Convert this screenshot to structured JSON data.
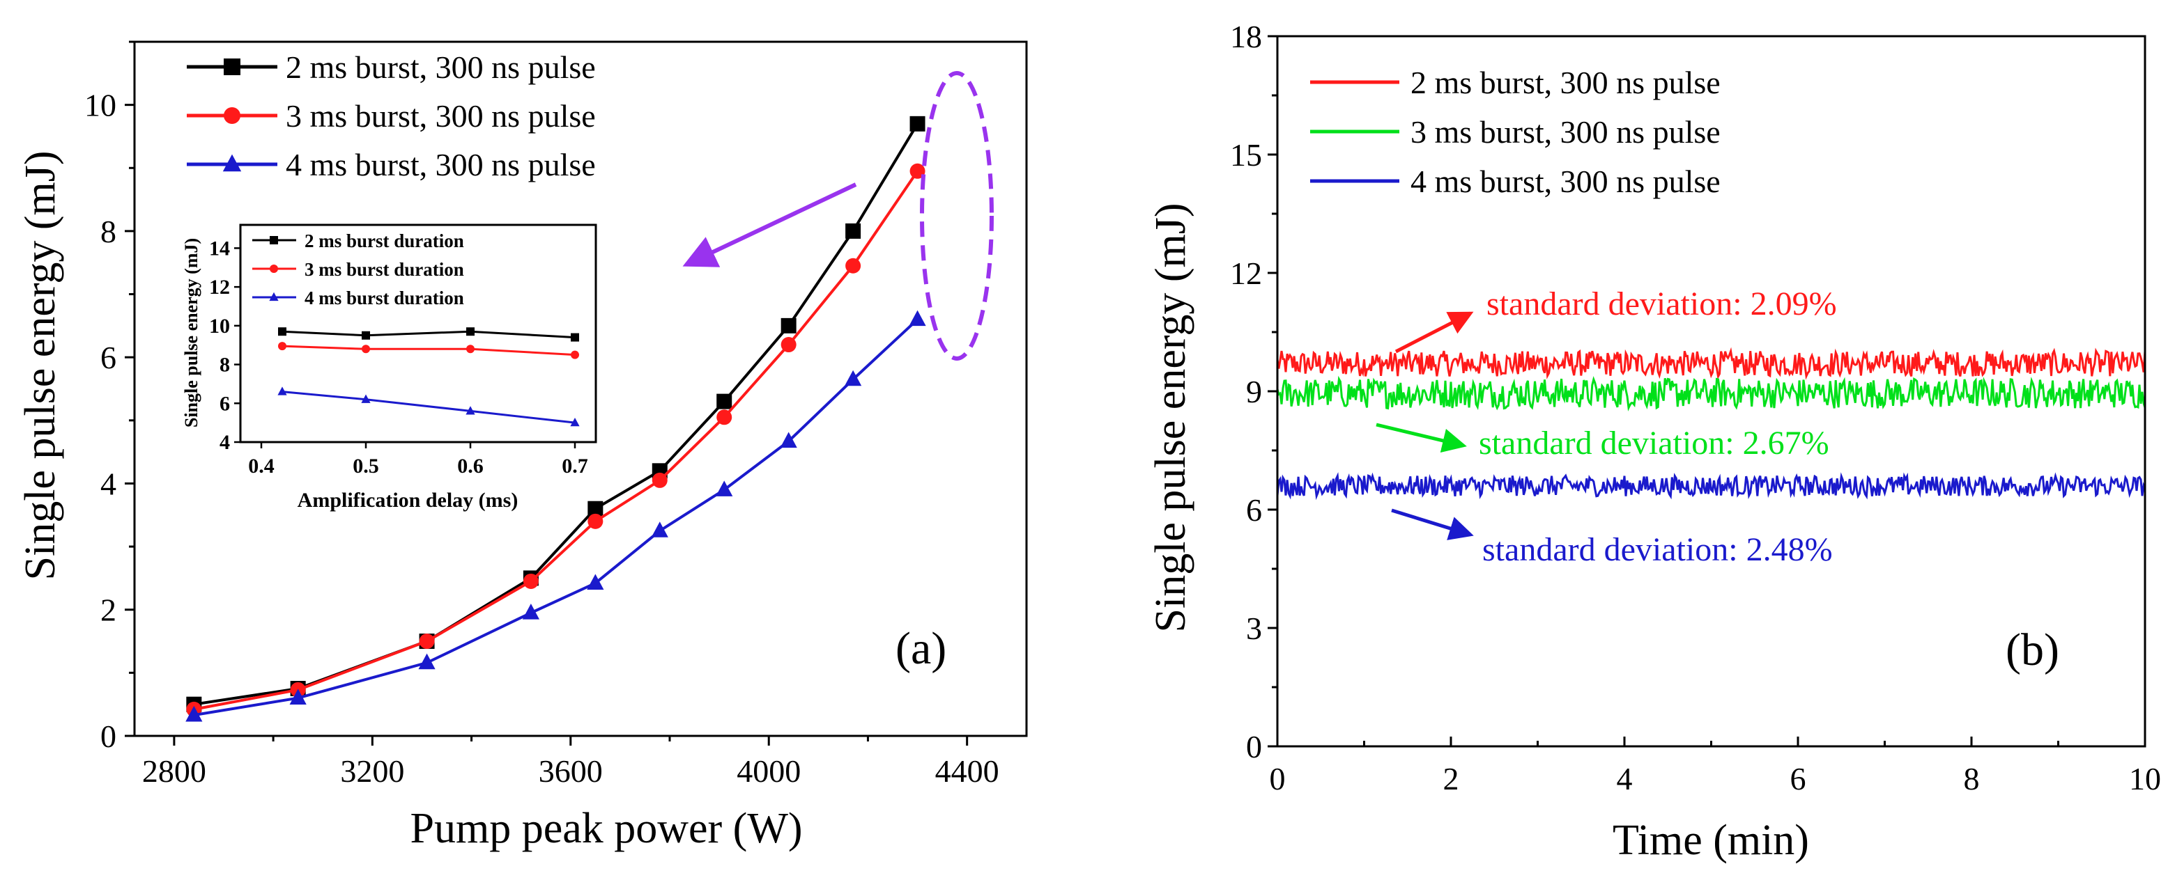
{
  "colors": {
    "black": "#000000",
    "red": "#ff1a1a",
    "green": "#00e01a",
    "blue": "#1a1acc",
    "purple": "#9933ee"
  },
  "chart_data": [
    {
      "id": "a",
      "type": "line",
      "panel_label": "(a)",
      "xlabel": "Pump peak power (W)",
      "ylabel": "Single pulse energy (mJ)",
      "xlim": [
        2720,
        4520
      ],
      "ylim": [
        0,
        11
      ],
      "xticks": [
        2800,
        3200,
        3600,
        4000,
        4400
      ],
      "yticks": [
        0,
        2,
        4,
        6,
        8,
        10
      ],
      "x": [
        2840,
        3050,
        3310,
        3520,
        3650,
        3780,
        3910,
        4040,
        4170,
        4300
      ],
      "series": [
        {
          "name": "2 ms burst, 300 ns pulse",
          "marker": "square",
          "color": "#000000",
          "values": [
            0.5,
            0.75,
            1.5,
            2.5,
            3.6,
            4.2,
            5.3,
            6.5,
            8.0,
            9.7
          ]
        },
        {
          "name": "3 ms burst, 300 ns pulse",
          "marker": "circle",
          "color": "#ff1a1a",
          "values": [
            0.42,
            0.73,
            1.5,
            2.45,
            3.4,
            4.05,
            5.05,
            6.2,
            7.45,
            8.95
          ]
        },
        {
          "name": "4 ms burst, 300 ns pulse",
          "marker": "triangle",
          "color": "#1a1acc",
          "values": [
            0.33,
            0.6,
            1.16,
            1.95,
            2.42,
            3.25,
            3.9,
            4.67,
            5.65,
            6.6
          ]
        }
      ],
      "annotations": [
        "dashed ellipse around highest-power points",
        "arrow pointing to inset"
      ],
      "inset": {
        "xlabel": "Amplification delay (ms)",
        "ylabel": "Single pulse energy (mJ)",
        "xlim": [
          0.38,
          0.72
        ],
        "ylim": [
          4,
          15.2
        ],
        "xticks": [
          0.4,
          0.5,
          0.6,
          0.7
        ],
        "yticks": [
          4,
          6,
          8,
          10,
          12,
          14
        ],
        "x": [
          0.42,
          0.5,
          0.6,
          0.7
        ],
        "series": [
          {
            "name": "2 ms burst duration",
            "marker": "square",
            "color": "#000000",
            "values": [
              9.7,
              9.5,
              9.7,
              9.4
            ]
          },
          {
            "name": "3 ms burst duration",
            "marker": "circle",
            "color": "#ff1a1a",
            "values": [
              8.95,
              8.8,
              8.8,
              8.5
            ]
          },
          {
            "name": "4 ms burst duration",
            "marker": "triangle",
            "color": "#1a1acc",
            "values": [
              6.6,
              6.2,
              5.6,
              5.0
            ]
          }
        ]
      }
    },
    {
      "id": "b",
      "type": "line",
      "panel_label": "(b)",
      "xlabel": "Time (min)",
      "ylabel": "Single pulse energy (mJ)",
      "xlim": [
        0,
        10
      ],
      "ylim": [
        0,
        18
      ],
      "xticks": [
        0,
        2,
        4,
        6,
        8,
        10
      ],
      "yticks": [
        0,
        3,
        6,
        9,
        12,
        15,
        18
      ],
      "series": [
        {
          "name": "2 ms burst, 300 ns pulse",
          "color": "#ff1a1a",
          "mean": 9.7,
          "std_pct": 2.09,
          "annotation": "standard deviation: 2.09%"
        },
        {
          "name": "3 ms burst, 300 ns pulse",
          "color": "#00e01a",
          "mean": 8.95,
          "std_pct": 2.67,
          "annotation": "standard deviation: 2.67%"
        },
        {
          "name": "4 ms burst, 300 ns pulse",
          "color": "#1a1acc",
          "mean": 6.6,
          "std_pct": 2.48,
          "annotation": "standard deviation: 2.48%"
        }
      ]
    }
  ]
}
